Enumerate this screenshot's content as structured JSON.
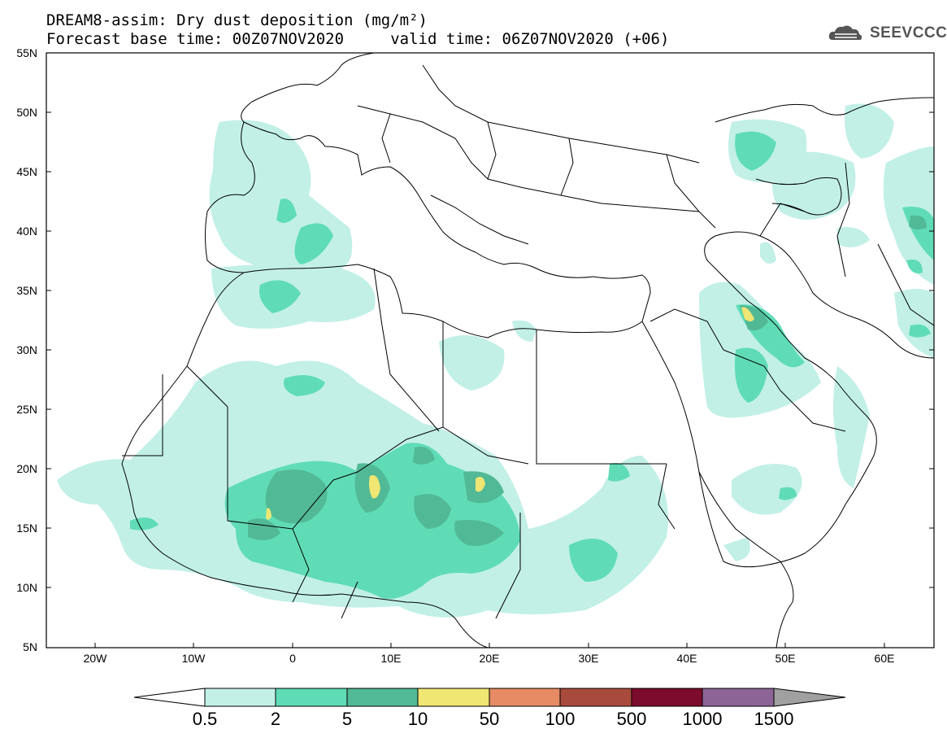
{
  "header": {
    "title_line1": "DREAM8-assim: Dry dust deposition (mg/m²)",
    "title_line2": "Forecast base time: 00Z07NOV2020     valid time: 06Z07NOV2020 (+06)",
    "logo_text": "SEEVCCC"
  },
  "map": {
    "lat_labels": [
      "55N",
      "50N",
      "45N",
      "40N",
      "35N",
      "30N",
      "25N",
      "20N",
      "15N",
      "10N",
      "5N"
    ],
    "lon_labels": [
      "20W",
      "10W",
      "0",
      "10E",
      "20E",
      "30E",
      "40E",
      "50E",
      "60E"
    ],
    "lat_values": [
      55,
      50,
      45,
      40,
      35,
      30,
      25,
      20,
      15,
      10,
      5
    ],
    "lon_values": [
      -20,
      -10,
      0,
      10,
      20,
      30,
      40,
      50,
      60
    ],
    "lat_range": [
      5,
      55
    ],
    "lon_range": [
      -25,
      65
    ]
  },
  "legend": {
    "labels": [
      "0.5",
      "2",
      "5",
      "10",
      "50",
      "100",
      "500",
      "1000",
      "1500"
    ],
    "colors": [
      "#c2f0e6",
      "#5fdcb6",
      "#52b996",
      "#f0e673",
      "#e68b64",
      "#a84a3c",
      "#7d0c2c",
      "#8c6496",
      "#a0a0a0"
    ]
  },
  "colors": {
    "light": "#c2f0e6",
    "medium": "#5fdcb6",
    "dark": "#52b996",
    "yellow": "#f0e673"
  }
}
